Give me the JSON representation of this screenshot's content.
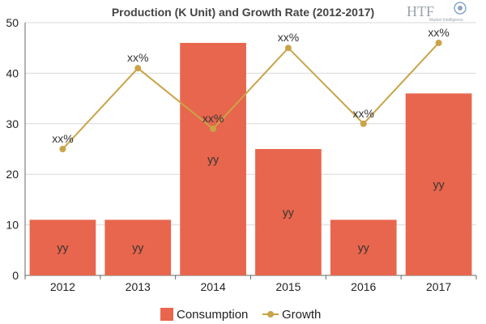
{
  "chart_data": {
    "type": "bar",
    "title": "Production (K Unit) and Growth Rate (2012-2017)",
    "categories": [
      "2012",
      "2013",
      "2014",
      "2015",
      "2016",
      "2017"
    ],
    "ylim": [
      0,
      50
    ],
    "yticks": [
      "0",
      "10",
      "20",
      "30",
      "40",
      "50"
    ],
    "grid": true,
    "legend_position": "bottom",
    "series": [
      {
        "name": "Consumption",
        "type": "bar",
        "values": [
          11,
          11,
          46,
          25,
          11,
          36
        ],
        "labels": [
          "yy",
          "yy",
          "yy",
          "yy",
          "yy",
          "yy"
        ],
        "color": "#e8664d"
      },
      {
        "name": "Growth",
        "type": "line",
        "values": [
          25,
          41,
          29,
          45,
          30,
          46
        ],
        "labels": [
          "xx%",
          "xx%",
          "xx%",
          "xx%",
          "xx%",
          "xx%"
        ],
        "color": "#c9a448"
      }
    ]
  },
  "logo": {
    "icon": "htf-logo-icon",
    "text": "HTF",
    "subtext": "Market Intelligence"
  }
}
